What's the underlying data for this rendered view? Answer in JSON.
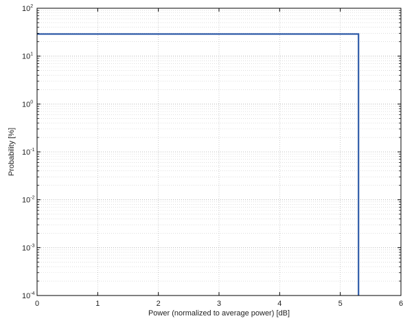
{
  "chart_data": {
    "type": "line",
    "title": "",
    "xlabel": "Power (normalized to average power) [dB]",
    "ylabel": "Probability [%]",
    "xlim": [
      0,
      6
    ],
    "ylim": [
      0.0001,
      100
    ],
    "yscale": "log",
    "x_ticks": [
      "0",
      "1",
      "2",
      "3",
      "4",
      "5",
      "6"
    ],
    "y_ticks": [
      {
        "base": "10",
        "exp": "2",
        "value": 100
      },
      {
        "base": "10",
        "exp": "1",
        "value": 10
      },
      {
        "base": "10",
        "exp": "0",
        "value": 1
      },
      {
        "base": "10",
        "exp": "-1",
        "value": 0.1
      },
      {
        "base": "10",
        "exp": "-2",
        "value": 0.01
      },
      {
        "base": "10",
        "exp": "-3",
        "value": 0.001
      },
      {
        "base": "10",
        "exp": "-4",
        "value": 0.0001
      }
    ],
    "grid": true,
    "series": [
      {
        "color": "#2e5aa8",
        "x": [
          0,
          5.3,
          5.3
        ],
        "y": [
          29,
          29,
          0.0001
        ]
      }
    ]
  }
}
